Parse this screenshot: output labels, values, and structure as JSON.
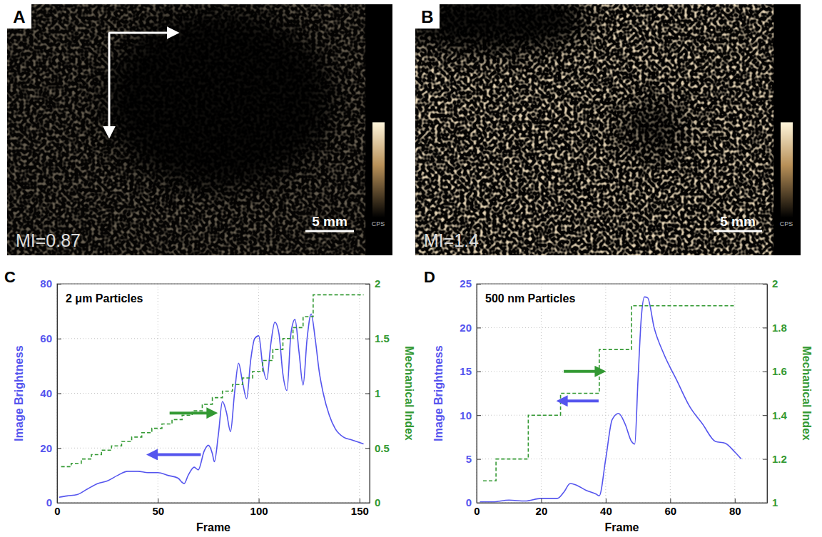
{
  "images": [
    {
      "label": "A",
      "mi": "MI=0.87",
      "scale": "5 mm",
      "colorbar": "CPS"
    },
    {
      "label": "B",
      "mi": "MI=1.4",
      "scale": "5 mm",
      "colorbar": "CPS"
    }
  ],
  "chart_data": [
    {
      "type": "line",
      "panel": "C",
      "annotation": "2 μm Particles",
      "xlabel": "Frame",
      "ylabel": "Image Brightness",
      "y2label": "Mechanical Index",
      "xlim": [
        0,
        155
      ],
      "xticks": [
        0,
        50,
        100,
        150
      ],
      "ylim": [
        0,
        80
      ],
      "yticks": [
        0,
        20,
        40,
        60,
        80
      ],
      "y2lim": [
        0,
        2
      ],
      "y2ticks": [
        0,
        0.5,
        1,
        1.5,
        2
      ],
      "grid": true,
      "series": [
        {
          "color": "#5555ee",
          "line_style": "solid",
          "x": [
            1,
            5,
            10,
            15,
            20,
            25,
            30,
            35,
            40,
            45,
            50,
            55,
            60,
            63,
            65,
            68,
            70,
            73,
            75,
            77,
            78,
            80,
            82,
            84,
            86,
            88,
            90,
            92,
            94,
            96,
            98,
            100,
            102,
            104,
            106,
            108,
            110,
            112,
            114,
            116,
            118,
            120,
            122,
            124,
            126,
            128,
            130,
            132,
            135,
            138,
            142,
            146,
            150,
            152
          ],
          "values": [
            2,
            2.5,
            3,
            5,
            7,
            8,
            10,
            11.5,
            11.5,
            11,
            11,
            10,
            9,
            7,
            10,
            13,
            12,
            19,
            21,
            18,
            15,
            25,
            37,
            33,
            26,
            40,
            51,
            44,
            38,
            52,
            60,
            61,
            50,
            45,
            58,
            66,
            62,
            47,
            41,
            62,
            67,
            55,
            43,
            60,
            69,
            60,
            48,
            40,
            32,
            27,
            24,
            23,
            22,
            21.5
          ]
        },
        {
          "color": "#339933",
          "line_style": "dashed",
          "type": "step",
          "axis": "y2",
          "x": [
            2,
            7,
            12,
            17,
            22,
            27,
            32,
            37,
            42,
            47,
            52,
            57,
            62,
            67,
            72,
            77,
            82,
            87,
            92,
            97,
            102,
            107,
            112,
            117,
            122,
            127,
            152
          ],
          "values": [
            0.33,
            0.36,
            0.4,
            0.44,
            0.48,
            0.52,
            0.56,
            0.6,
            0.64,
            0.68,
            0.72,
            0.76,
            0.8,
            0.84,
            0.9,
            0.96,
            1.02,
            1.08,
            1.14,
            1.2,
            1.3,
            1.4,
            1.5,
            1.6,
            1.7,
            1.9,
            1.9
          ]
        }
      ]
    },
    {
      "type": "line",
      "panel": "D",
      "annotation": "500 nm Particles",
      "xlabel": "Frame",
      "ylabel": "Image Brightness",
      "y2label": "Mechanical Index",
      "xlim": [
        0,
        90
      ],
      "xticks": [
        0,
        20,
        40,
        60,
        80
      ],
      "ylim": [
        0,
        25
      ],
      "yticks": [
        0,
        5,
        10,
        15,
        20,
        25
      ],
      "y2lim": [
        1,
        2
      ],
      "y2ticks": [
        1,
        1.2,
        1.4,
        1.6,
        1.8,
        2
      ],
      "grid": true,
      "series": [
        {
          "color": "#5555ee",
          "line_style": "solid",
          "x": [
            1,
            5,
            10,
            15,
            20,
            25,
            27,
            29,
            31,
            34,
            37,
            38,
            40,
            42,
            44,
            46,
            48,
            49,
            50,
            51,
            52,
            53,
            55,
            58,
            62,
            66,
            70,
            74,
            77,
            80,
            82
          ],
          "values": [
            0.1,
            0.1,
            0.3,
            0.2,
            0.5,
            0.5,
            1.2,
            2.2,
            2.0,
            1.4,
            1.0,
            0.8,
            5,
            9.5,
            10.2,
            9,
            7,
            6.7,
            14,
            21,
            23.5,
            23.4,
            20,
            17,
            14,
            11,
            9,
            7,
            6.8,
            5.8,
            5
          ]
        },
        {
          "color": "#339933",
          "line_style": "dashed",
          "type": "step",
          "axis": "y2",
          "x": [
            2,
            6,
            16,
            26,
            38,
            48,
            80
          ],
          "values": [
            1.1,
            1.2,
            1.4,
            1.5,
            1.7,
            1.9,
            1.9
          ]
        }
      ]
    }
  ]
}
